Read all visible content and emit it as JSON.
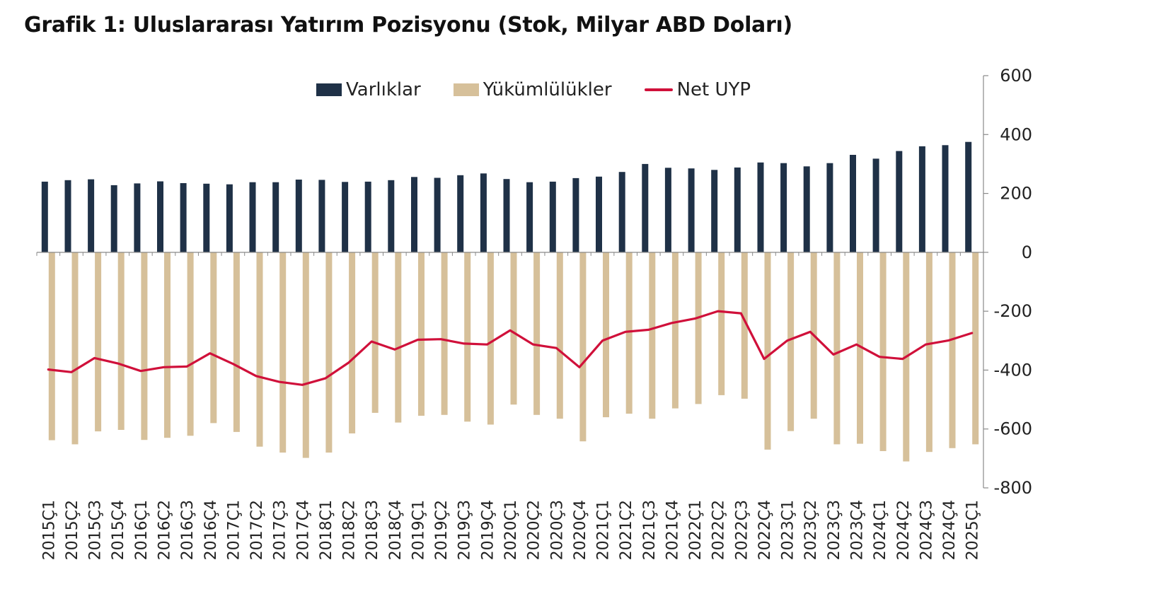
{
  "title": "Grafik 1: Uluslararası Yatırım Pozisyonu (Stok, Milyar ABD Doları)",
  "legend": {
    "assets": "Varlıklar",
    "liabilities": "Yükümlülükler",
    "net": "Net UYP"
  },
  "colors": {
    "assets": "#1f3147",
    "liabilities": "#d6c09a",
    "net": "#d0103a",
    "axis": "#8a8a8a"
  },
  "chart_data": {
    "type": "bar",
    "title": "Grafik 1: Uluslararası Yatırım Pozisyonu (Stok, Milyar ABD Doları)",
    "xlabel": "",
    "ylabel": "",
    "ylim": [
      -800,
      600
    ],
    "yticks": [
      600,
      400,
      200,
      0,
      -200,
      -400,
      -600,
      -800
    ],
    "ytick_labels": [
      "600",
      "400",
      "200",
      "0",
      "-200",
      "-400",
      "-600",
      "-800"
    ],
    "y_axis_side": "right",
    "legend_position": "top",
    "grid": false,
    "categories": [
      "2015Ç1",
      "2015Ç2",
      "2015Ç3",
      "2015Ç4",
      "2016Ç1",
      "2016Ç2",
      "2016Ç3",
      "2016Ç4",
      "2017Ç1",
      "2017Ç2",
      "2017Ç3",
      "2017Ç4",
      "2018Ç1",
      "2018Ç2",
      "2018Ç3",
      "2018Ç4",
      "2019Ç1",
      "2019Ç2",
      "2019Ç3",
      "2019Ç4",
      "2020Ç1",
      "2020Ç2",
      "2020Ç3",
      "2020Ç4",
      "2021Ç1",
      "2021Ç2",
      "2021Ç3",
      "2021Ç4",
      "2022Ç1",
      "2022Ç2",
      "2022Ç3",
      "2022Ç4",
      "2023Ç1",
      "2023Ç2",
      "2023Ç3",
      "2023Ç4",
      "2024Ç1",
      "2024Ç2",
      "2024Ç3",
      "2024Ç4",
      "2025Ç1"
    ],
    "series": [
      {
        "name": "Varlıklar",
        "type": "bar",
        "values": [
          240,
          245,
          248,
          228,
          234,
          241,
          235,
          233,
          231,
          238,
          238,
          247,
          246,
          239,
          240,
          245,
          256,
          253,
          262,
          268,
          249,
          238,
          240,
          252,
          257,
          273,
          300,
          287,
          285,
          280,
          288,
          305,
          303,
          292,
          303,
          331,
          318,
          344,
          360,
          364,
          375
        ]
      },
      {
        "name": "Yükümlülükler",
        "type": "bar",
        "values": [
          -638,
          -652,
          -608,
          -603,
          -637,
          -630,
          -623,
          -580,
          -610,
          -660,
          -680,
          -698,
          -680,
          -615,
          -545,
          -578,
          -555,
          -552,
          -575,
          -585,
          -517,
          -552,
          -565,
          -642,
          -560,
          -548,
          -565,
          -530,
          -515,
          -485,
          -497,
          -670,
          -607,
          -565,
          -652,
          -650,
          -675,
          -710,
          -678,
          -665,
          -652
        ]
      },
      {
        "name": "Net UYP",
        "type": "line",
        "values": [
          -398,
          -407,
          -359,
          -377,
          -403,
          -390,
          -388,
          -343,
          -379,
          -420,
          -440,
          -450,
          -428,
          -375,
          -303,
          -330,
          -297,
          -295,
          -310,
          -313,
          -265,
          -313,
          -325,
          -390,
          -300,
          -270,
          -263,
          -240,
          -225,
          -200,
          -207,
          -362,
          -300,
          -270,
          -347,
          -313,
          -355,
          -362,
          -313,
          -299,
          -274
        ]
      }
    ]
  }
}
